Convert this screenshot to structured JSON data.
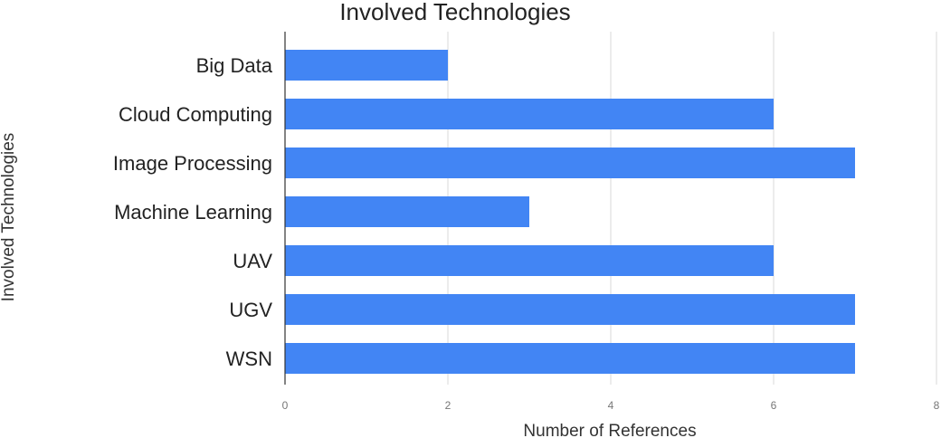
{
  "chart_data": {
    "type": "bar",
    "orientation": "horizontal",
    "title": "Involved Technologies",
    "xlabel": "Number of References",
    "ylabel": "Involved Technologies",
    "categories": [
      "Big Data",
      "Cloud Computing",
      "Image Processing",
      "Machine Learning",
      "UAV",
      "UGV",
      "WSN"
    ],
    "values": [
      2,
      6,
      7,
      3,
      6,
      7,
      7
    ],
    "xlim": [
      0,
      8
    ],
    "xticks": [
      "0",
      "2",
      "4",
      "6",
      "8"
    ],
    "grid": true,
    "legend": "none",
    "colors": {
      "bar": "#4285f4",
      "gridline": "#d9d9d9",
      "axis": "#333333"
    }
  }
}
